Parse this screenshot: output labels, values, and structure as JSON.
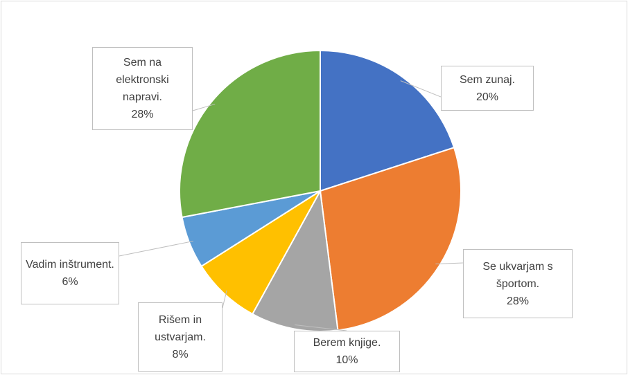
{
  "chart_data": {
    "type": "pie",
    "categories": [
      "Sem zunaj.",
      "Se ukvarjam s športom.",
      "Berem knjige.",
      "Rišem in ustvarjam.",
      "Vadim inštrument.",
      "Sem na elektronski napravi."
    ],
    "values": [
      20,
      28,
      10,
      8,
      6,
      28
    ],
    "value_labels": [
      "20%",
      "28%",
      "10%",
      "8%",
      "6%",
      "28%"
    ],
    "colors": [
      "#4472c4",
      "#ed7d31",
      "#a5a5a5",
      "#ffc000",
      "#5b9bd5",
      "#70ad47"
    ]
  }
}
